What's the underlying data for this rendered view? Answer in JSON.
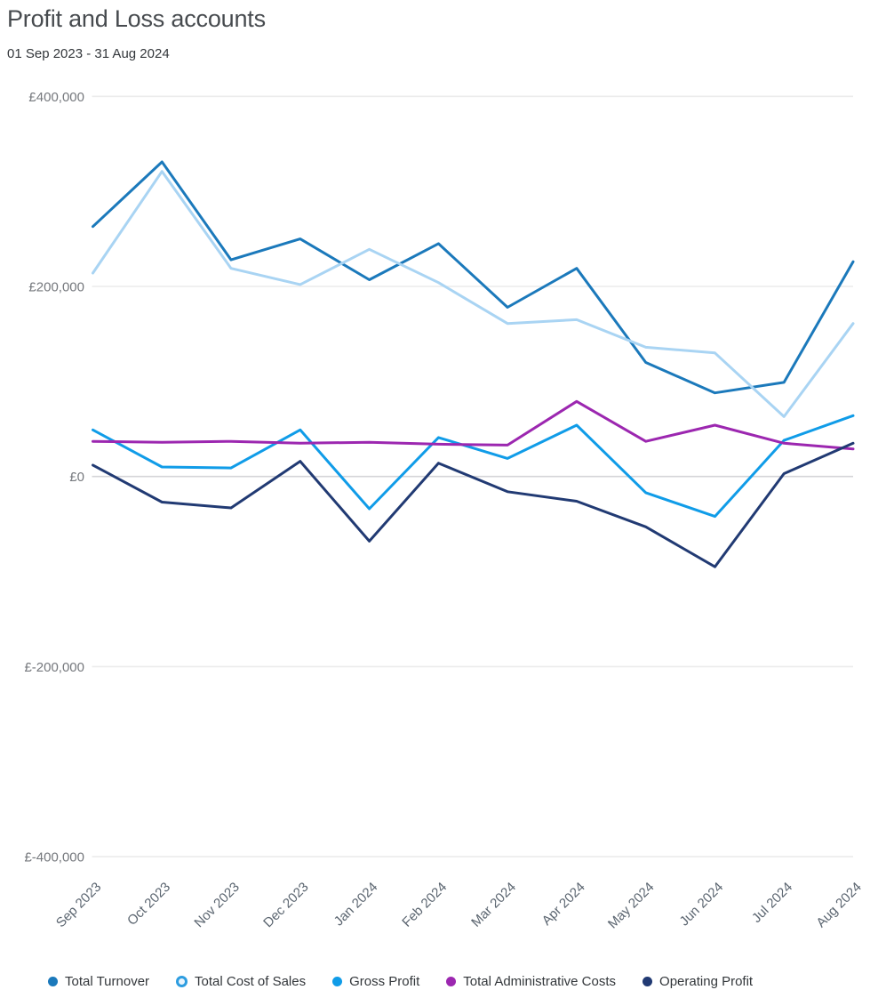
{
  "header": {
    "title": "Profit and Loss accounts",
    "subtitle": "01 Sep 2023 - 31 Aug 2024"
  },
  "chart_data": {
    "type": "line",
    "title": "Profit and Loss accounts",
    "subtitle": "01 Sep 2023 - 31 Aug 2024",
    "x": [
      "Sep 2023",
      "Oct 2023",
      "Nov 2023",
      "Dec 2023",
      "Jan 2024",
      "Feb 2024",
      "Mar 2024",
      "Apr 2024",
      "May 2024",
      "Jun 2024",
      "Jul 2024",
      "Aug 2024"
    ],
    "series": [
      {
        "name": "Total Turnover",
        "color": "#1b79bb",
        "marker": "solid",
        "values": [
          263000,
          331000,
          228000,
          250000,
          207000,
          245000,
          178000,
          219000,
          120000,
          88000,
          99000,
          226000
        ]
      },
      {
        "name": "Total Cost of Sales",
        "color": "#a9d4f3",
        "marker": "hollow",
        "ring_color": "#2d9de0",
        "values": [
          214000,
          321000,
          219000,
          202000,
          239000,
          204000,
          161000,
          165000,
          136000,
          130000,
          63000,
          161000
        ]
      },
      {
        "name": "Gross Profit",
        "color": "#109ce8",
        "marker": "solid",
        "values": [
          49000,
          10000,
          9000,
          49000,
          -34000,
          41000,
          19000,
          54000,
          -17000,
          -42000,
          38000,
          64000
        ]
      },
      {
        "name": "Total Administrative Costs",
        "color": "#9c27b0",
        "marker": "solid",
        "values": [
          37000,
          36000,
          37000,
          35000,
          36000,
          34000,
          33000,
          79000,
          37000,
          54000,
          35000,
          29000
        ]
      },
      {
        "name": "Operating Profit",
        "color": "#213a73",
        "marker": "solid",
        "values": [
          12000,
          -27000,
          -33000,
          16000,
          -68000,
          14000,
          -16000,
          -26000,
          -53000,
          -95000,
          3000,
          35000
        ]
      }
    ],
    "ylim": [
      -400000,
      400000
    ],
    "ytick_values": [
      400000,
      200000,
      0,
      -200000,
      -400000
    ],
    "ytick_labels": [
      "£400,000",
      "£200,000",
      "£0",
      "£-200,000",
      "£-400,000"
    ],
    "xlabel": "",
    "ylabel": "",
    "grid": "horizontal",
    "legend_position": "bottom"
  },
  "colors": {
    "grid": "#ececec",
    "zero_grid": "#d5d5d8",
    "y_axis_text": "#75787d",
    "x_axis_text": "#5b6570",
    "title_text": "#474b4f",
    "legend_text": "#33373b"
  }
}
